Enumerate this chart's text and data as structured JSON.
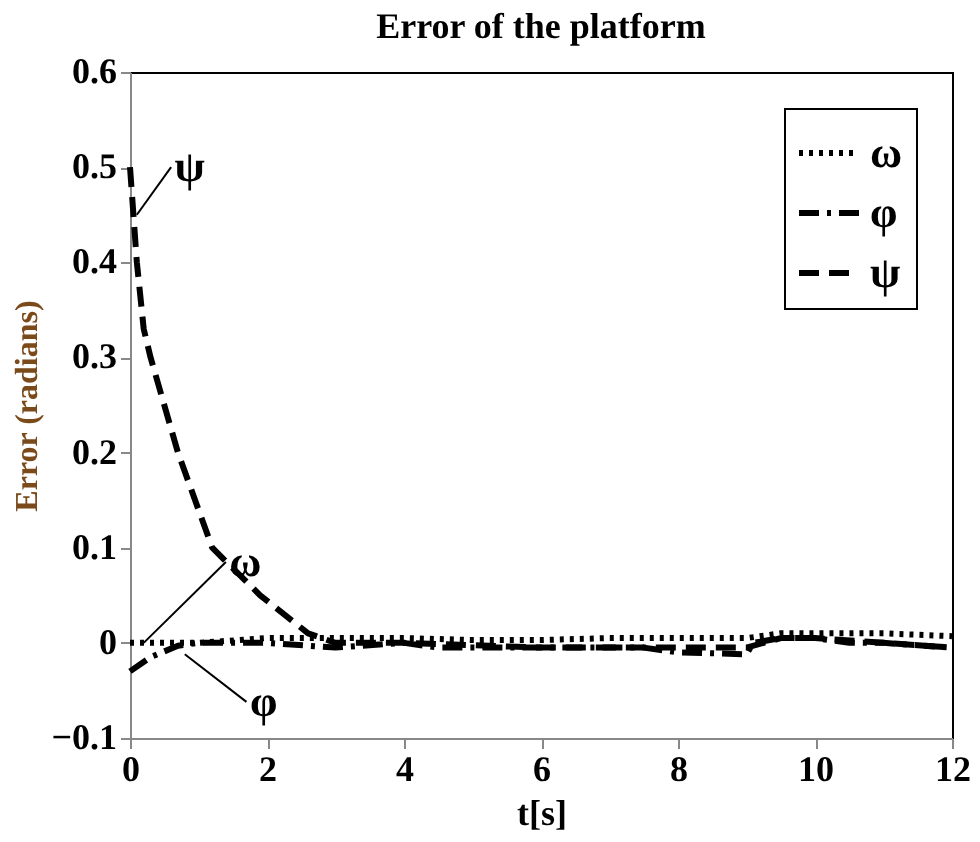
{
  "chart_data": {
    "type": "line",
    "title": "Error of the platform",
    "xlabel": "t[s]",
    "ylabel": "Error (radians)",
    "xlim": [
      0,
      12
    ],
    "ylim": [
      -0.1,
      0.6
    ],
    "xticks": [
      0,
      2,
      4,
      6,
      8,
      10,
      12
    ],
    "yticks": [
      -0.1,
      0,
      0.1,
      0.2,
      0.3,
      0.4,
      0.5,
      0.6
    ],
    "grid": false,
    "legend": "top right",
    "series": [
      {
        "name": "ω",
        "color": "#000000",
        "line_style": "dotted",
        "x": [
          0,
          1,
          2,
          3,
          4,
          5,
          6,
          7,
          8,
          9,
          9.5,
          10,
          11,
          12
        ],
        "values": [
          0,
          0,
          0.005,
          0.005,
          0.005,
          0.003,
          0.003,
          0.005,
          0.005,
          0.005,
          0.01,
          0.01,
          0.01,
          0.007
        ]
      },
      {
        "name": "φ",
        "color": "#000000",
        "line_style": "dash-dot",
        "x": [
          0,
          0.3,
          0.7,
          1,
          2,
          3,
          4,
          4.5,
          6,
          7.5,
          8,
          9,
          9.1,
          9.5,
          10,
          10.5,
          11,
          12
        ],
        "values": [
          -0.03,
          -0.015,
          -0.003,
          0,
          0,
          -0.005,
          0,
          -0.005,
          -0.005,
          -0.005,
          -0.01,
          -0.012,
          0,
          0.005,
          0.005,
          0,
          0,
          -0.005
        ]
      },
      {
        "name": "ψ",
        "color": "#000000",
        "line_style": "dashed",
        "x": [
          0,
          0.1,
          0.2,
          0.3,
          0.7,
          1.2,
          1.9,
          2.6,
          3,
          4,
          6,
          8,
          9,
          9.5,
          10,
          11,
          12
        ],
        "values": [
          0.5,
          0.4,
          0.33,
          0.3,
          0.2,
          0.1,
          0.05,
          0.01,
          0,
          0,
          -0.005,
          -0.005,
          -0.005,
          0.005,
          0.005,
          0,
          -0.005
        ]
      }
    ],
    "annotations": [
      {
        "text": "ψ",
        "x": 0.1,
        "y": 0.45
      },
      {
        "text": "ω",
        "x": 0.2,
        "y": 0
      },
      {
        "text": "φ",
        "x": 0.8,
        "y": -0.012
      }
    ]
  }
}
